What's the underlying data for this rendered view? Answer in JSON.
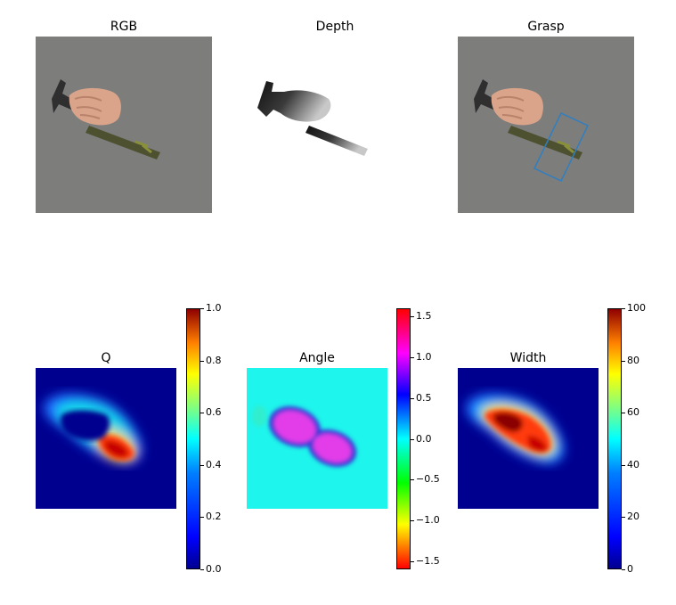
{
  "colors": {
    "rgb_background": "#7d7d7c",
    "hand": "#d9a48a",
    "hammer_head": "#2f2f2f",
    "handle": "#4d5130",
    "grasp_box": "#2f7fc1",
    "q_background": "#00008f",
    "angle_background": "#1ef5ec"
  },
  "chart_data": [
    {
      "type": "image",
      "title": "RGB"
    },
    {
      "type": "image",
      "title": "Depth"
    },
    {
      "type": "image",
      "title": "Grasp",
      "annotation": "rotated grasp rectangle over hammer handle"
    },
    {
      "type": "heatmap",
      "title": "Q",
      "colormap": "jet",
      "colorbar": {
        "min": 0.0,
        "max": 1.0,
        "ticks": [
          0.0,
          0.2,
          0.4,
          0.6,
          0.8,
          1.0
        ],
        "tick_labels": [
          "0.0",
          "0.2",
          "0.4",
          "0.6",
          "0.8",
          "1.0"
        ]
      }
    },
    {
      "type": "heatmap",
      "title": "Angle",
      "colormap": "hsv",
      "colorbar": {
        "min": -1.6,
        "max": 1.6,
        "ticks": [
          -1.5,
          -1.0,
          -0.5,
          0.0,
          0.5,
          1.0,
          1.5
        ],
        "tick_labels": [
          "−1.5",
          "−1.0",
          "−0.5",
          "0.0",
          "0.5",
          "1.0",
          "1.5"
        ]
      }
    },
    {
      "type": "heatmap",
      "title": "Width",
      "colormap": "jet",
      "colorbar": {
        "min": 0,
        "max": 100,
        "ticks": [
          0,
          20,
          40,
          60,
          80,
          100
        ],
        "tick_labels": [
          "0",
          "20",
          "40",
          "60",
          "80",
          "100"
        ]
      }
    }
  ]
}
